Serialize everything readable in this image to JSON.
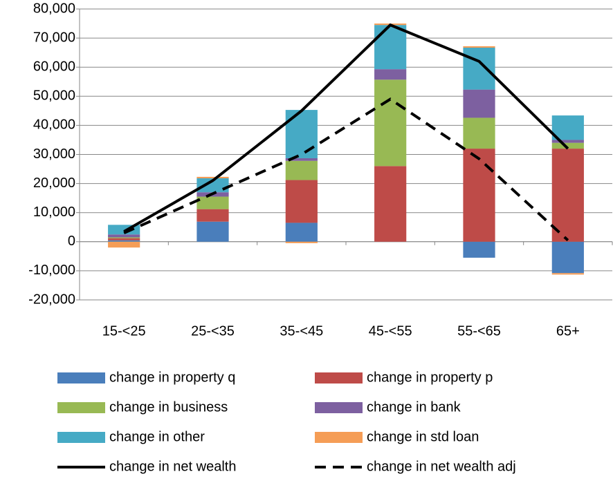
{
  "chart_data": {
    "type": "stacked-bar-line",
    "categories": [
      "15-<25",
      "25-<35",
      "35-<45",
      "45-<55",
      "55-<65",
      "65+"
    ],
    "series": [
      {
        "name": "change in property q",
        "color": "#4a7ebb",
        "values": [
          500,
          6900,
          6500,
          0,
          -5500,
          -10800
        ]
      },
      {
        "name": "change in property p",
        "color": "#be4b48",
        "values": [
          700,
          4300,
          14700,
          26000,
          32000,
          32000
        ]
      },
      {
        "name": "change in business",
        "color": "#98b954",
        "values": [
          300,
          4300,
          6600,
          29700,
          10600,
          2000
        ]
      },
      {
        "name": "change in bank",
        "color": "#7d60a0",
        "values": [
          1000,
          1500,
          900,
          3600,
          9700,
          1000
        ]
      },
      {
        "name": "change in other",
        "color": "#46aac5",
        "values": [
          3300,
          4800,
          16600,
          15200,
          14400,
          8400
        ]
      },
      {
        "name": "change in std loan",
        "color": "#f59d56",
        "values": [
          -2000,
          500,
          -500,
          500,
          500,
          -500
        ]
      }
    ],
    "lines": [
      {
        "name": "change in net wealth",
        "color": "#000000",
        "dash": false,
        "values": [
          3500,
          21000,
          45000,
          74500,
          62000,
          32000
        ]
      },
      {
        "name": "change in net wealth adj",
        "color": "#000000",
        "dash": true,
        "values": [
          3000,
          16500,
          30000,
          49000,
          28500,
          500
        ]
      }
    ],
    "ylim": [
      -20000,
      80000
    ],
    "yticks": [
      {
        "value": -20000,
        "label": "-20,000"
      },
      {
        "value": -10000,
        "label": "-10,000"
      },
      0,
      {
        "value": 10000,
        "label": "10,000"
      },
      {
        "value": 20000,
        "label": "20,000"
      },
      {
        "value": 30000,
        "label": "30,000"
      },
      {
        "value": 40000,
        "label": "40,000"
      },
      {
        "value": 50000,
        "label": "50,000"
      },
      {
        "value": 60000,
        "label": "60,000"
      },
      {
        "value": 70000,
        "label": "70,000"
      },
      {
        "value": 80000,
        "label": "80,000"
      }
    ],
    "grid": true
  }
}
